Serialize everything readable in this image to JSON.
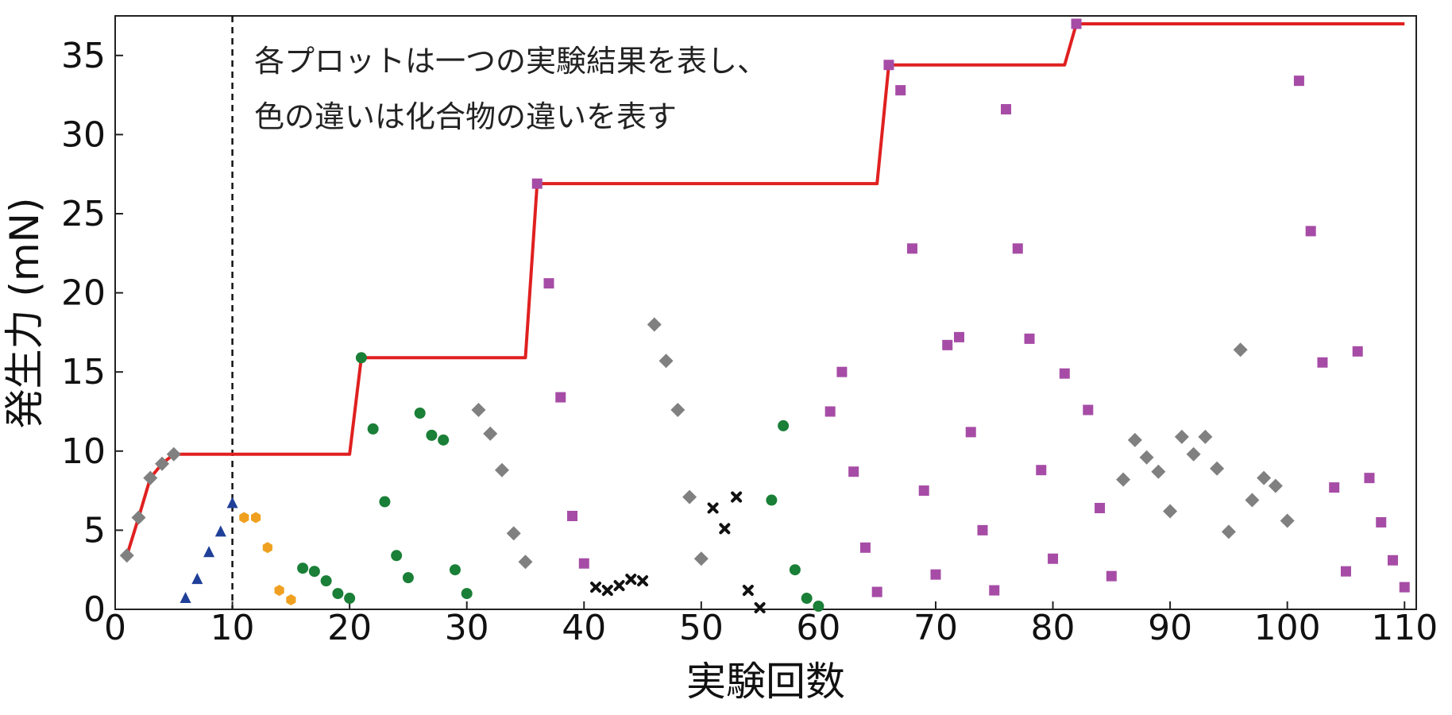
{
  "chart_data": {
    "type": "scatter",
    "xlabel": "実験回数",
    "ylabel": "発生力 (mN)",
    "xlim": [
      0,
      111
    ],
    "ylim": [
      0,
      37.5
    ],
    "xticks": [
      0,
      10,
      20,
      30,
      40,
      50,
      60,
      70,
      80,
      90,
      100,
      110
    ],
    "yticks": [
      0,
      5,
      10,
      15,
      20,
      25,
      30,
      35
    ],
    "grid": false,
    "annotation_lines": [
      "各プロットは一つの実験結果を表し、",
      "色の違いは化合物の違いを表す"
    ],
    "vertical_marker_x": 10,
    "series": [
      {
        "marker": "diamond",
        "color": "#808080",
        "points": [
          [
            1,
            3.4
          ],
          [
            2,
            5.8
          ],
          [
            3,
            8.3
          ],
          [
            4,
            9.2
          ],
          [
            5,
            9.8
          ],
          [
            31,
            12.6
          ],
          [
            32,
            11.1
          ],
          [
            33,
            8.8
          ],
          [
            34,
            4.8
          ],
          [
            35,
            3.0
          ],
          [
            46,
            18.0
          ],
          [
            47,
            15.7
          ],
          [
            48,
            12.6
          ],
          [
            49,
            7.1
          ],
          [
            50,
            3.2
          ],
          [
            86,
            8.2
          ],
          [
            87,
            10.7
          ],
          [
            88,
            9.6
          ],
          [
            89,
            8.7
          ],
          [
            90,
            6.2
          ],
          [
            91,
            10.9
          ],
          [
            92,
            9.8
          ],
          [
            93,
            10.9
          ],
          [
            94,
            8.9
          ],
          [
            95,
            4.9
          ],
          [
            96,
            16.4
          ],
          [
            97,
            6.9
          ],
          [
            98,
            8.3
          ],
          [
            99,
            7.8
          ],
          [
            100,
            5.6
          ]
        ]
      },
      {
        "marker": "triangle",
        "color": "#1f3f99",
        "points": [
          [
            6,
            0.7
          ],
          [
            7,
            1.9
          ],
          [
            8,
            3.6
          ],
          [
            9,
            4.9
          ],
          [
            10,
            6.7
          ]
        ]
      },
      {
        "marker": "hexagon",
        "color": "#f0a020",
        "points": [
          [
            11,
            5.8
          ],
          [
            12,
            5.8
          ],
          [
            13,
            3.9
          ],
          [
            14,
            1.2
          ],
          [
            15,
            0.6
          ]
        ]
      },
      {
        "marker": "circle",
        "color": "#1a7f37",
        "points": [
          [
            16,
            2.6
          ],
          [
            17,
            2.4
          ],
          [
            18,
            1.8
          ],
          [
            19,
            1.0
          ],
          [
            20,
            0.7
          ],
          [
            21,
            15.9
          ],
          [
            22,
            11.4
          ],
          [
            23,
            6.8
          ],
          [
            24,
            3.4
          ],
          [
            25,
            2.0
          ],
          [
            26,
            12.4
          ],
          [
            27,
            11.0
          ],
          [
            28,
            10.7
          ],
          [
            29,
            2.5
          ],
          [
            30,
            1.0
          ],
          [
            56,
            6.9
          ],
          [
            57,
            11.6
          ],
          [
            58,
            2.5
          ],
          [
            59,
            0.7
          ],
          [
            60,
            0.2
          ]
        ]
      },
      {
        "marker": "x",
        "color": "#111111",
        "points": [
          [
            41,
            1.4
          ],
          [
            42,
            1.2
          ],
          [
            43,
            1.5
          ],
          [
            44,
            1.9
          ],
          [
            45,
            1.8
          ],
          [
            51,
            6.4
          ],
          [
            52,
            5.1
          ],
          [
            53,
            7.1
          ],
          [
            54,
            1.2
          ],
          [
            55,
            0.1
          ]
        ]
      },
      {
        "marker": "square",
        "color": "#a64ca6",
        "points": [
          [
            36,
            26.9
          ],
          [
            37,
            20.6
          ],
          [
            38,
            13.4
          ],
          [
            39,
            5.9
          ],
          [
            40,
            2.9
          ],
          [
            61,
            12.5
          ],
          [
            62,
            15.0
          ],
          [
            63,
            8.7
          ],
          [
            64,
            3.9
          ],
          [
            65,
            1.1
          ],
          [
            66,
            34.4
          ],
          [
            67,
            32.8
          ],
          [
            68,
            22.8
          ],
          [
            69,
            7.5
          ],
          [
            70,
            2.2
          ],
          [
            71,
            16.7
          ],
          [
            72,
            17.2
          ],
          [
            73,
            11.2
          ],
          [
            74,
            5.0
          ],
          [
            75,
            1.2
          ],
          [
            76,
            31.6
          ],
          [
            77,
            22.8
          ],
          [
            78,
            17.1
          ],
          [
            79,
            8.8
          ],
          [
            80,
            3.2
          ],
          [
            81,
            14.9
          ],
          [
            82,
            37.0
          ],
          [
            83,
            12.6
          ],
          [
            84,
            6.4
          ],
          [
            85,
            2.1
          ],
          [
            101,
            33.4
          ],
          [
            102,
            23.9
          ],
          [
            103,
            15.6
          ],
          [
            104,
            7.7
          ],
          [
            105,
            2.4
          ],
          [
            106,
            16.3
          ],
          [
            107,
            8.3
          ],
          [
            108,
            5.5
          ],
          [
            109,
            3.1
          ],
          [
            110,
            1.4
          ]
        ]
      }
    ],
    "best_line": {
      "color": "#e02020",
      "points": [
        [
          1,
          3.4
        ],
        [
          2,
          5.8
        ],
        [
          3,
          8.3
        ],
        [
          4,
          9.2
        ],
        [
          5,
          9.8
        ],
        [
          20,
          9.8
        ],
        [
          21,
          15.9
        ],
        [
          35,
          15.9
        ],
        [
          36,
          26.9
        ],
        [
          65,
          26.9
        ],
        [
          66,
          34.4
        ],
        [
          81,
          34.4
        ],
        [
          82,
          37.0
        ],
        [
          110,
          37.0
        ]
      ]
    }
  }
}
